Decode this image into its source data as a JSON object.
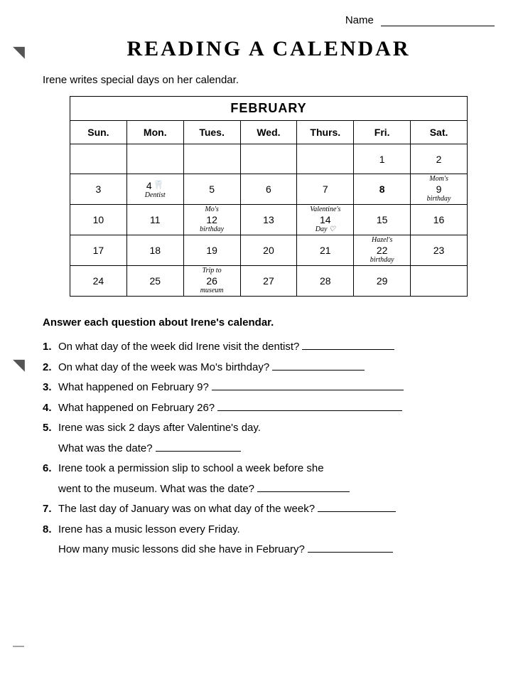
{
  "name_label": "Name",
  "title": "READING A CALENDAR",
  "intro": "Irene writes special days on her calendar.",
  "calendar": {
    "month": "FEBRUARY",
    "days": [
      "Sun.",
      "Mon.",
      "Tues.",
      "Wed.",
      "Thurs.",
      "Fri.",
      "Sat."
    ],
    "weeks": [
      [
        {
          "n": "",
          "top": "",
          "bot": ""
        },
        {
          "n": "",
          "top": "",
          "bot": ""
        },
        {
          "n": "",
          "top": "",
          "bot": ""
        },
        {
          "n": "",
          "top": "",
          "bot": ""
        },
        {
          "n": "",
          "top": "",
          "bot": ""
        },
        {
          "n": "1",
          "top": "",
          "bot": ""
        },
        {
          "n": "2",
          "top": "",
          "bot": ""
        }
      ],
      [
        {
          "n": "3",
          "top": "",
          "bot": ""
        },
        {
          "n": "4",
          "top": "",
          "bot": "Dentist",
          "tooth": true
        },
        {
          "n": "5",
          "top": "",
          "bot": ""
        },
        {
          "n": "6",
          "top": "",
          "bot": ""
        },
        {
          "n": "7",
          "top": "",
          "bot": ""
        },
        {
          "n": "8",
          "top": "",
          "bot": "",
          "bold": true
        },
        {
          "n": "9",
          "top": "Mom's",
          "bot": "birthday"
        }
      ],
      [
        {
          "n": "10",
          "top": "",
          "bot": ""
        },
        {
          "n": "11",
          "top": "",
          "bot": ""
        },
        {
          "n": "12",
          "top": "Mo's",
          "bot": "birthday"
        },
        {
          "n": "13",
          "top": "",
          "bot": ""
        },
        {
          "n": "14",
          "top": "Valentine's",
          "bot": "Day     ♡",
          "pre": "Day "
        },
        {
          "n": "15",
          "top": "",
          "bot": ""
        },
        {
          "n": "16",
          "top": "",
          "bot": ""
        }
      ],
      [
        {
          "n": "17",
          "top": "",
          "bot": ""
        },
        {
          "n": "18",
          "top": "",
          "bot": ""
        },
        {
          "n": "19",
          "top": "",
          "bot": ""
        },
        {
          "n": "20",
          "top": "",
          "bot": ""
        },
        {
          "n": "21",
          "top": "",
          "bot": ""
        },
        {
          "n": "22",
          "top": "Hazel's",
          "bot": "birthday"
        },
        {
          "n": "23",
          "top": "",
          "bot": ""
        }
      ],
      [
        {
          "n": "24",
          "top": "",
          "bot": ""
        },
        {
          "n": "25",
          "top": "",
          "bot": ""
        },
        {
          "n": "26",
          "top": "Trip to",
          "bot": "museum"
        },
        {
          "n": "27",
          "top": "",
          "bot": ""
        },
        {
          "n": "28",
          "top": "",
          "bot": ""
        },
        {
          "n": "29",
          "top": "",
          "bot": ""
        },
        {
          "n": "",
          "top": "",
          "bot": ""
        }
      ]
    ]
  },
  "section_head": "Answer each question about Irene's calendar.",
  "questions": [
    {
      "lines": [
        {
          "t": "On what day of the week did Irene visit the dentist?",
          "bw": 130
        }
      ]
    },
    {
      "lines": [
        {
          "t": "On what day of the week was Mo's birthday?",
          "bw": 130
        }
      ]
    },
    {
      "lines": [
        {
          "t": "What happened on February 9?",
          "bw": 270
        }
      ]
    },
    {
      "lines": [
        {
          "t": "What happened on February 26?",
          "bw": 260
        }
      ]
    },
    {
      "lines": [
        {
          "t": "Irene was sick 2 days after Valentine's day."
        },
        {
          "t": "What was the date?",
          "bw": 120
        }
      ]
    },
    {
      "lines": [
        {
          "t": "Irene took a permission slip to school a week before she"
        },
        {
          "t": "went to the museum. What was the date?",
          "bw": 130
        }
      ]
    },
    {
      "lines": [
        {
          "t": "The last day of January was on what day of the week?",
          "bw": 110
        }
      ]
    },
    {
      "lines": [
        {
          "t": "Irene has a music lesson every Friday."
        },
        {
          "t": "How many music lessons did she have in February?",
          "bw": 120
        }
      ]
    }
  ]
}
